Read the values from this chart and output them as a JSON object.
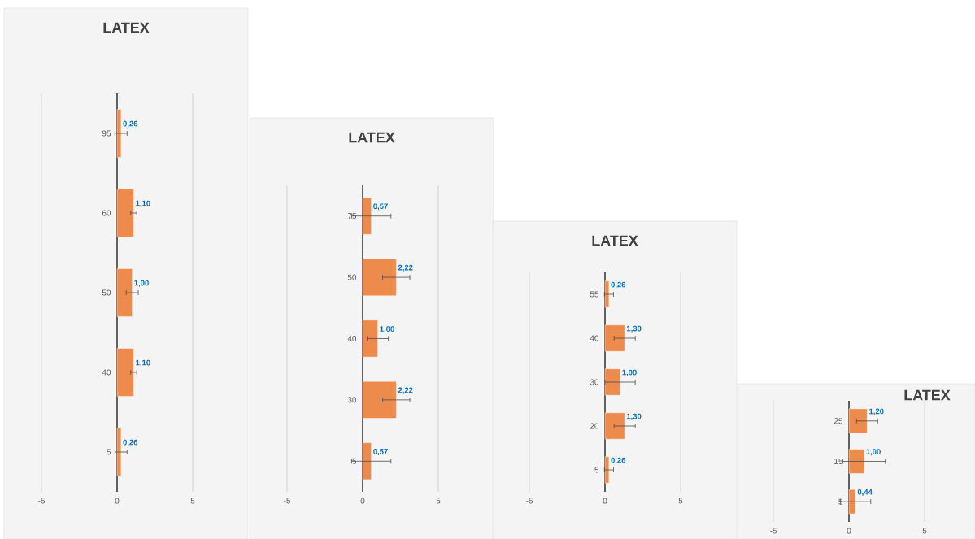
{
  "chart_data": [
    {
      "type": "bar",
      "orientation": "horizontal",
      "title": "LATEX",
      "categories": [
        "95",
        "60",
        "50",
        "40",
        "5"
      ],
      "values": [
        0.26,
        1.1,
        1.0,
        1.1,
        0.26
      ],
      "errors": [
        0.4,
        0.2,
        0.4,
        0.2,
        0.4
      ],
      "value_labels": [
        "0,26",
        "1,10",
        "1,00",
        "1,10",
        "0,26"
      ],
      "color": "#ed8b4c",
      "xlim": [
        -5,
        5
      ],
      "xticks": [
        -5,
        0,
        5
      ],
      "grid": "x"
    },
    {
      "type": "bar",
      "orientation": "horizontal",
      "title": "LATEX",
      "categories": [
        "75",
        "50",
        "40",
        "30",
        "5"
      ],
      "values": [
        0.57,
        2.22,
        1.0,
        2.22,
        0.57
      ],
      "errors": [
        1.3,
        0.9,
        0.7,
        0.9,
        1.3
      ],
      "value_labels": [
        "0,57",
        "2,22",
        "1,00",
        "2,22",
        "0,57"
      ],
      "color": "#ed8b4c",
      "xlim": [
        -5,
        5
      ],
      "xticks": [
        -5,
        0,
        5
      ],
      "grid": "x"
    },
    {
      "type": "bar",
      "orientation": "horizontal",
      "title": "LATEX",
      "categories": [
        "55",
        "40",
        "30",
        "20",
        "5"
      ],
      "values": [
        0.26,
        1.3,
        1.0,
        1.3,
        0.26
      ],
      "errors": [
        0.3,
        0.7,
        1.0,
        0.7,
        0.3
      ],
      "value_labels": [
        "0,26",
        "1,30",
        "1,00",
        "1,30",
        "0,26"
      ],
      "color": "#ed8b4c",
      "xlim": [
        -5,
        5
      ],
      "xticks": [
        -5,
        0,
        5
      ],
      "grid": "x"
    },
    {
      "type": "bar",
      "orientation": "horizontal",
      "title": "LATEX",
      "categories": [
        "25",
        "15",
        "5"
      ],
      "values": [
        1.2,
        1.0,
        0.44
      ],
      "errors": [
        0.7,
        1.4,
        1.0
      ],
      "value_labels": [
        "1,20",
        "1,00",
        "0,44"
      ],
      "color": "#ed8b4c",
      "xlim": [
        -5,
        5
      ],
      "xticks": [
        -5,
        0,
        5
      ],
      "grid": "x"
    }
  ]
}
